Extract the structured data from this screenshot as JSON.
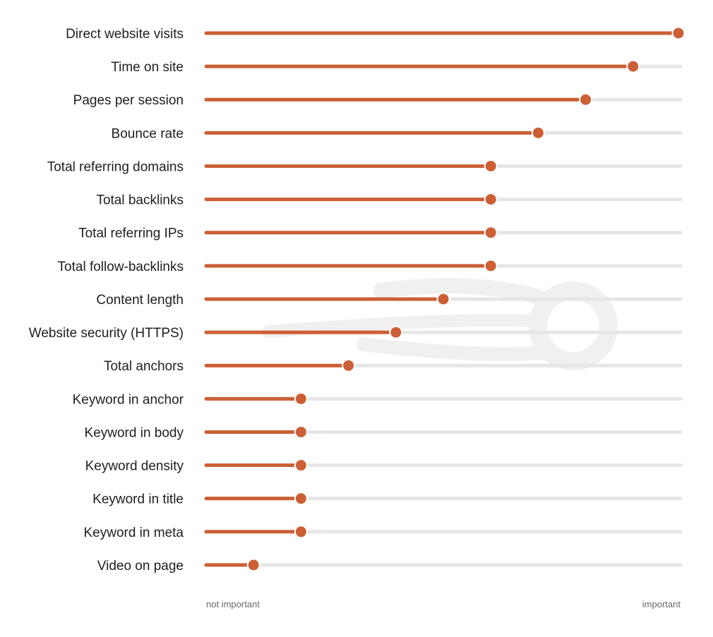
{
  "chart_data": {
    "type": "lollipop",
    "categories": [
      "Direct website visits",
      "Time on site",
      "Pages per session",
      "Bounce rate",
      "Total referring domains",
      "Total backlinks",
      "Total referring IPs",
      "Total follow-backlinks",
      "Content length",
      "Website security (HTTPS)",
      "Total anchors",
      "Keyword in anchor",
      "Keyword in body",
      "Keyword density",
      "Keyword in title",
      "Keyword in meta",
      "Video on page"
    ],
    "values": [
      1.0,
      0.9,
      0.8,
      0.7,
      0.6,
      0.6,
      0.6,
      0.6,
      0.5,
      0.4,
      0.3,
      0.2,
      0.2,
      0.2,
      0.2,
      0.2,
      0.1
    ],
    "xlim": [
      0,
      1
    ],
    "x_min_label": "not important",
    "x_max_label": "important",
    "colors": {
      "accent": "#cc5f35",
      "track": "#e6e6e6",
      "label": "#1f1f1f",
      "axis_label": "#6b6b6b",
      "watermark": "#f3f3f3"
    }
  }
}
